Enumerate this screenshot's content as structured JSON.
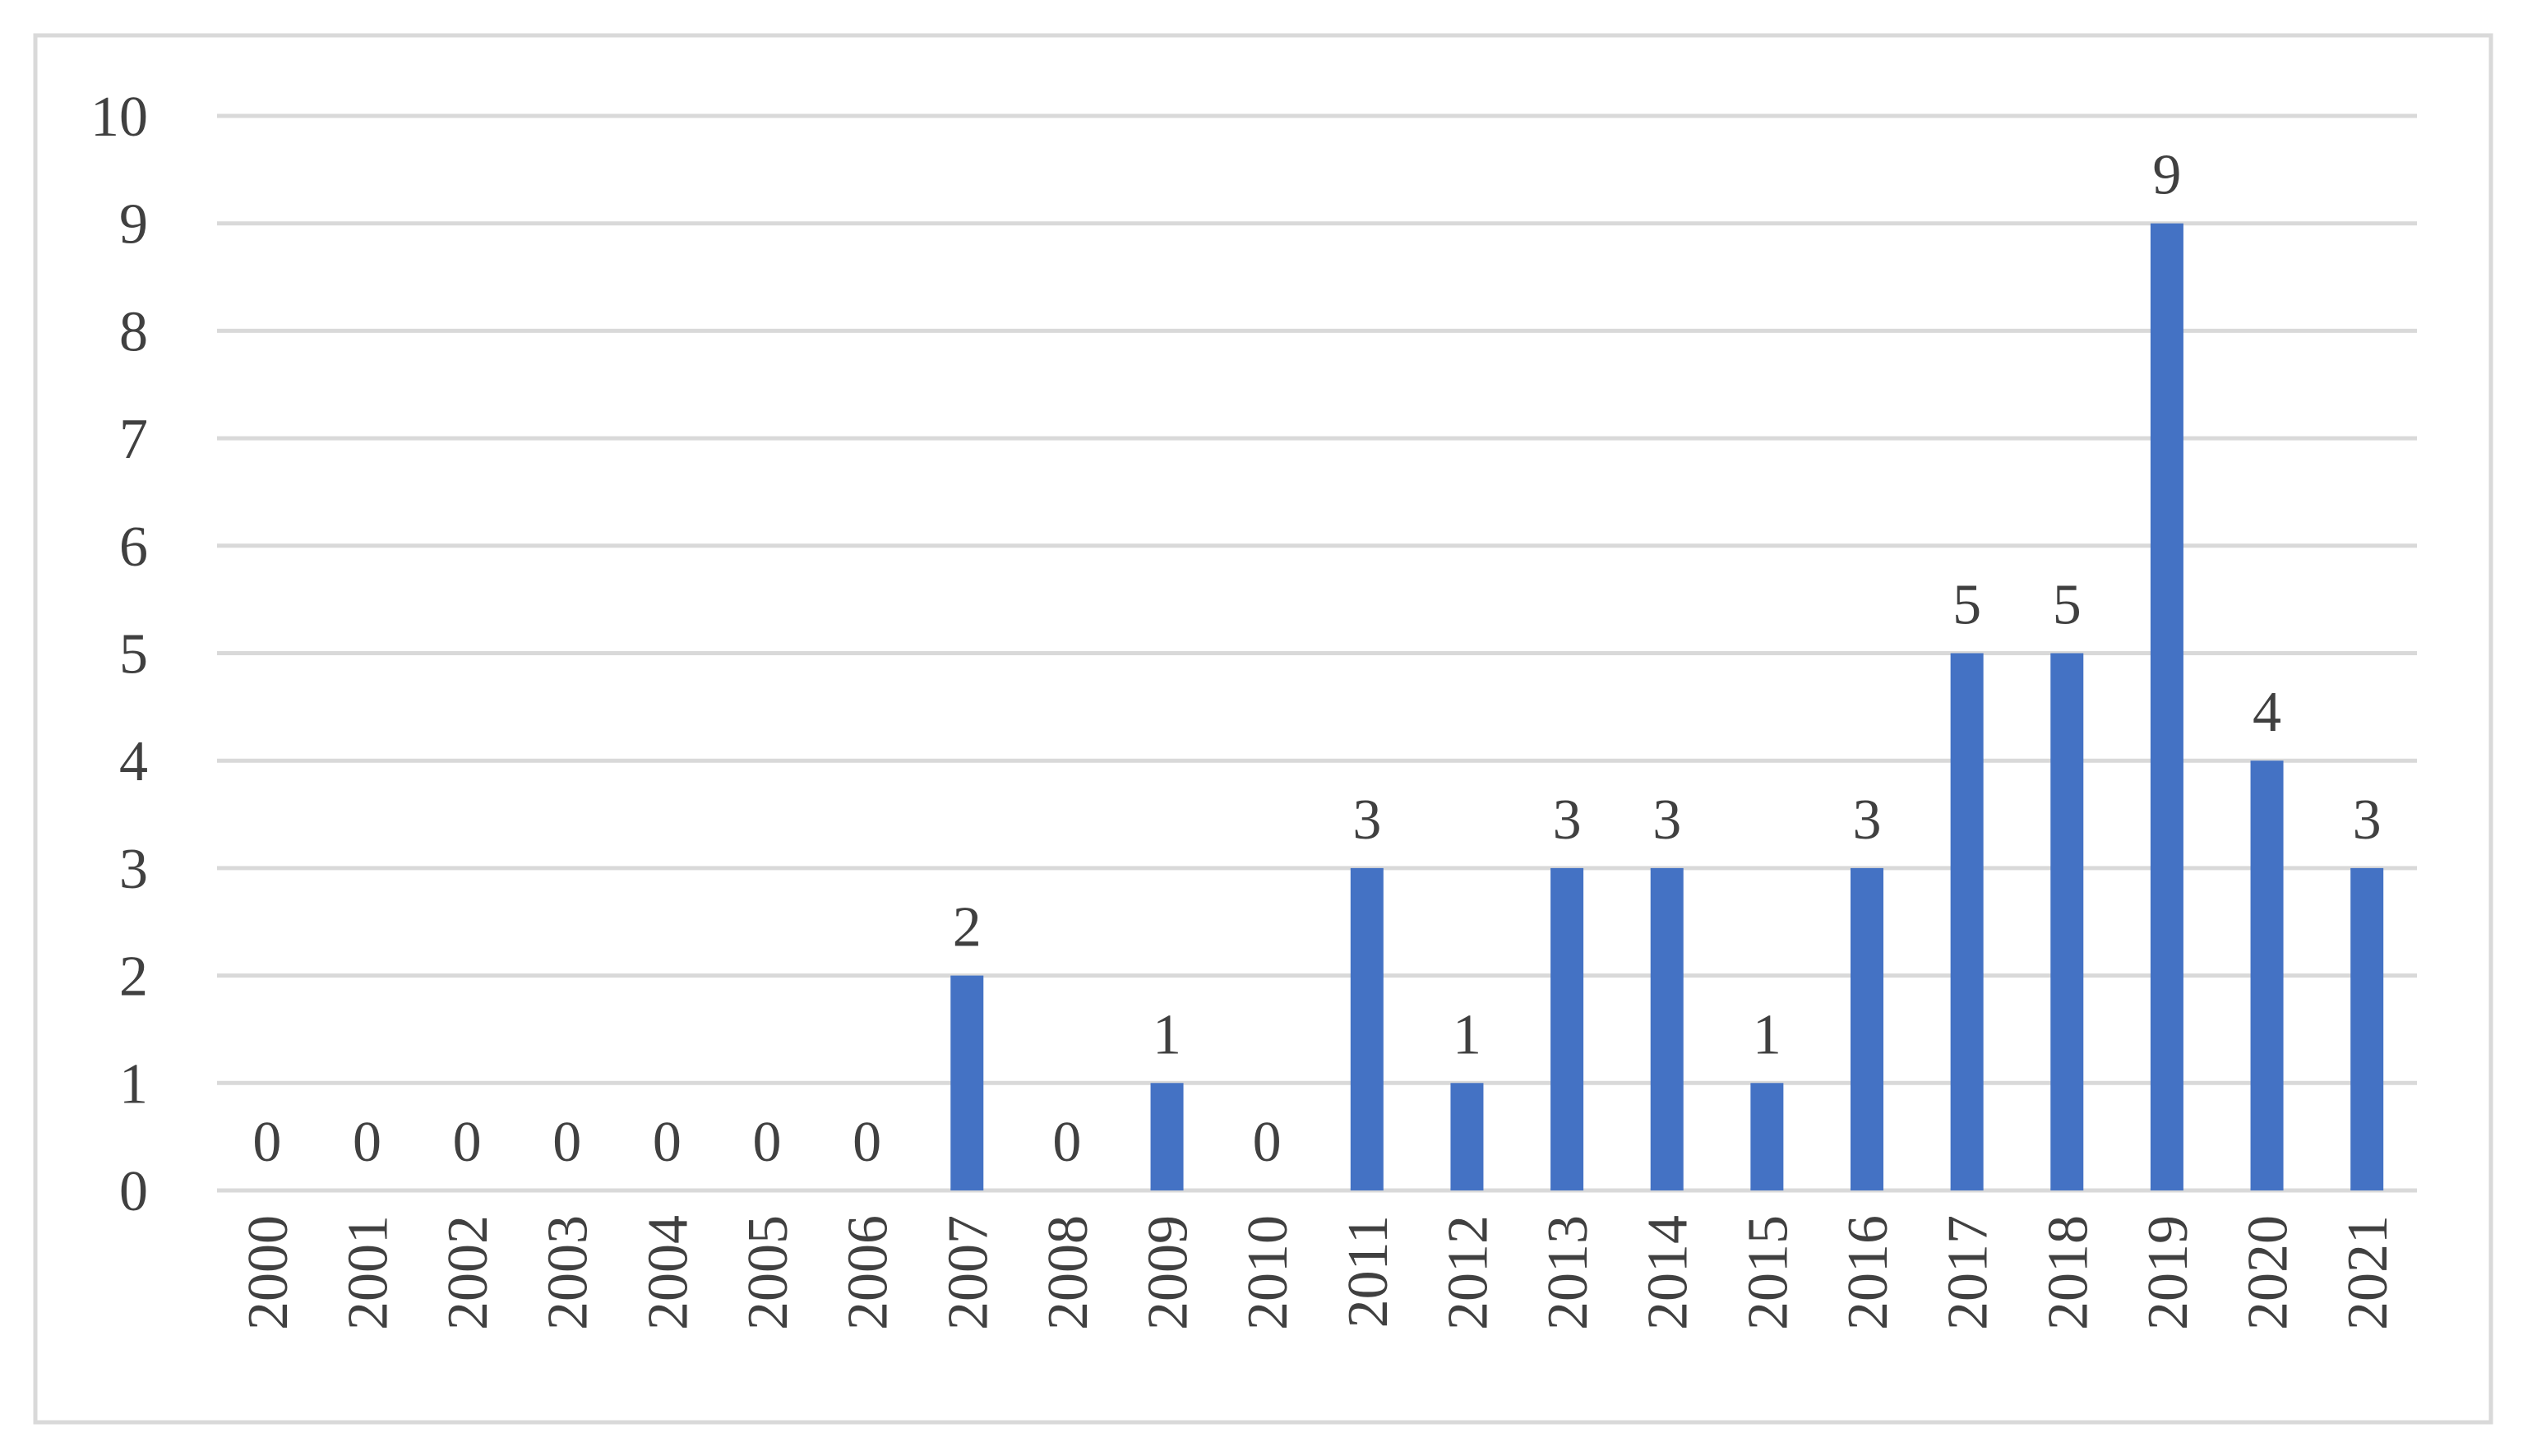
{
  "chart_data": {
    "type": "bar",
    "categories": [
      "2000",
      "2001",
      "2002",
      "2003",
      "2004",
      "2005",
      "2006",
      "2007",
      "2008",
      "2009",
      "2010",
      "2011",
      "2012",
      "2013",
      "2014",
      "2015",
      "2016",
      "2017",
      "2018",
      "2019",
      "2020",
      "2021"
    ],
    "values": [
      0,
      0,
      0,
      0,
      0,
      0,
      0,
      2,
      0,
      1,
      0,
      3,
      1,
      3,
      3,
      1,
      3,
      5,
      5,
      9,
      4,
      3
    ],
    "color": "#4472c4",
    "ylim": [
      0,
      10
    ],
    "yticks": [
      0,
      1,
      2,
      3,
      4,
      5,
      6,
      7,
      8,
      9,
      10
    ],
    "grid": true
  }
}
